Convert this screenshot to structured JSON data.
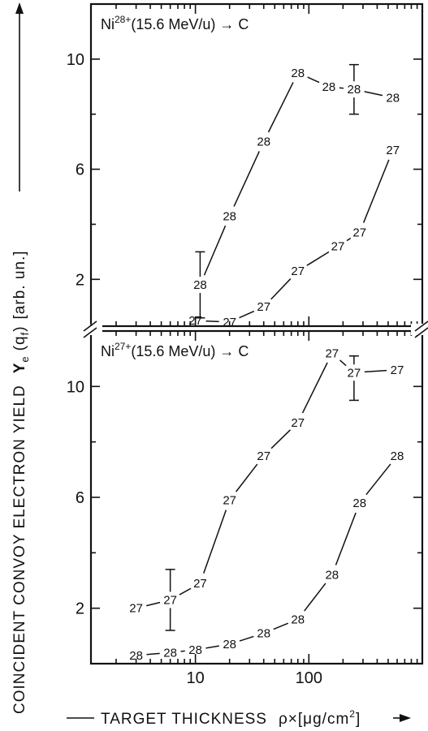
{
  "figure": {
    "ylabel": "COINCIDENT CONVOY ELECTRON YIELD Yₑ (q_f) [arb. un.]",
    "ylabel_parts": {
      "words": "COINCIDENT  CONVOY  ELECTRON  YIELD",
      "symbol": "Y",
      "symbol_sub": "e",
      "arg": "(q",
      "arg_sub": "f",
      "arg_close": ")",
      "unit": "[arb. un.]"
    },
    "xlabel": "TARGET THICKNESS ρ×[μg/cm²]",
    "xlabel_parts": {
      "words": "TARGET  THICKNESS",
      "symbol": "ρ×[μg/cm",
      "sup": "2",
      "close": "]"
    }
  },
  "chart_data": [
    {
      "type": "line",
      "panel": "top",
      "title": "Ni28+(15.6 MeV/u) → C",
      "title_parts": {
        "ion": "Ni",
        "charge": "28+",
        "rest": "(15.6 MeV/u) → C"
      },
      "xscale": "log",
      "xlim": [
        1.2,
        1000
      ],
      "ylim": [
        0.3,
        12
      ],
      "yticks": [
        2,
        6,
        10
      ],
      "ytick_labels": [
        "2",
        "6",
        "10"
      ],
      "xticks_minor": [
        2,
        3,
        4,
        5,
        6,
        7,
        8,
        9,
        20,
        30,
        40,
        50,
        60,
        70,
        80,
        90,
        200,
        300,
        400,
        500,
        600,
        700,
        800,
        900
      ],
      "xticks_major": [
        10,
        100
      ],
      "series": [
        {
          "marker_label": "28",
          "x": [
            11,
            20,
            40,
            80,
            150,
            250,
            550
          ],
          "y": [
            1.8,
            4.3,
            7.0,
            9.5,
            9.0,
            8.9,
            8.6
          ],
          "error_bars": [
            {
              "x": 11,
              "low": 0.6,
              "high": 3.0
            },
            {
              "x": 250,
              "low": 8.0,
              "high": 9.8
            }
          ]
        },
        {
          "marker_label": "27",
          "x": [
            10,
            20,
            40,
            80,
            180,
            280,
            550
          ],
          "y": [
            0.5,
            0.45,
            1.0,
            2.3,
            3.2,
            3.7,
            6.7
          ]
        }
      ]
    },
    {
      "type": "line",
      "panel": "bottom",
      "title": "Ni27+(15.6 MeV/u) → C",
      "title_parts": {
        "ion": "Ni",
        "charge": "27+",
        "rest": "(15.6 MeV/u) → C"
      },
      "xscale": "log",
      "xlim": [
        1.2,
        1000
      ],
      "xticks_major": [
        10,
        100
      ],
      "xtick_labels": [
        "10",
        "100"
      ],
      "xticks_minor": [
        2,
        3,
        4,
        5,
        6,
        7,
        8,
        9,
        20,
        30,
        40,
        50,
        60,
        70,
        80,
        90,
        200,
        300,
        400,
        500,
        600,
        700,
        800,
        900
      ],
      "ylim": [
        0,
        12
      ],
      "yticks": [
        2,
        6,
        10
      ],
      "ytick_labels": [
        "2",
        "6",
        "10"
      ],
      "series": [
        {
          "marker_label": "27",
          "x": [
            3,
            6,
            11,
            20,
            40,
            80,
            160,
            250,
            600
          ],
          "y": [
            2.0,
            2.3,
            2.9,
            5.9,
            7.5,
            8.7,
            11.2,
            10.5,
            10.6
          ],
          "error_bars": [
            {
              "x": 6,
              "low": 1.2,
              "high": 3.4
            },
            {
              "x": 250,
              "low": 9.5,
              "high": 11.1
            }
          ]
        },
        {
          "marker_label": "28",
          "x": [
            3,
            6,
            10,
            20,
            40,
            80,
            160,
            280,
            600
          ],
          "y": [
            0.3,
            0.4,
            0.5,
            0.7,
            1.1,
            1.6,
            3.2,
            5.8,
            7.5
          ]
        }
      ]
    }
  ]
}
